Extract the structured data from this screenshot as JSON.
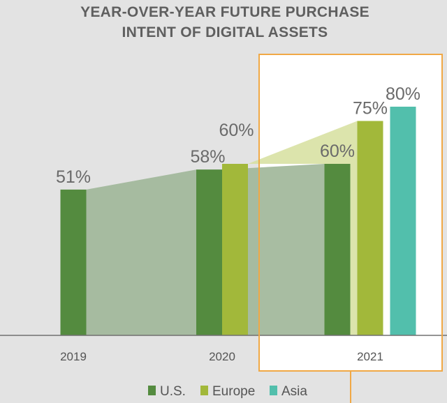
{
  "chart_data": {
    "type": "bar",
    "title": "YEAR-OVER-YEAR FUTURE PURCHASE INTENT OF DIGITAL ASSETS",
    "title_lines": [
      "YEAR-OVER-YEAR FUTURE PURCHASE",
      "INTENT OF DIGITAL ASSETS"
    ],
    "categories": [
      "2019",
      "2020",
      "2021"
    ],
    "series": [
      {
        "name": "U.S.",
        "color": "#548b3f",
        "values": [
          51,
          58,
          60
        ]
      },
      {
        "name": "Europe",
        "color": "#a2b83a",
        "values": [
          null,
          60,
          75
        ]
      },
      {
        "name": "Asia",
        "color": "#52bfac",
        "values": [
          null,
          null,
          80
        ]
      }
    ],
    "data_labels": [
      {
        "category": "2019",
        "series": "U.S.",
        "text": "51%"
      },
      {
        "category": "2020",
        "series": "U.S.",
        "text": "58%"
      },
      {
        "category": "2020",
        "series": "Europe",
        "text": "60%"
      },
      {
        "category": "2021",
        "series": "U.S.",
        "text": "60%"
      },
      {
        "category": "2021",
        "series": "Europe",
        "text": "75%"
      },
      {
        "category": "2021",
        "series": "Asia",
        "text": "80%"
      }
    ],
    "ylim": [
      0,
      100
    ],
    "grid": false,
    "legend": "bottom-center",
    "highlight_category": "2021",
    "colors": {
      "highlight_border": "#f0a845",
      "us_trend_area": "#9fb698",
      "europe_trend_area": "#d6df9e"
    }
  }
}
